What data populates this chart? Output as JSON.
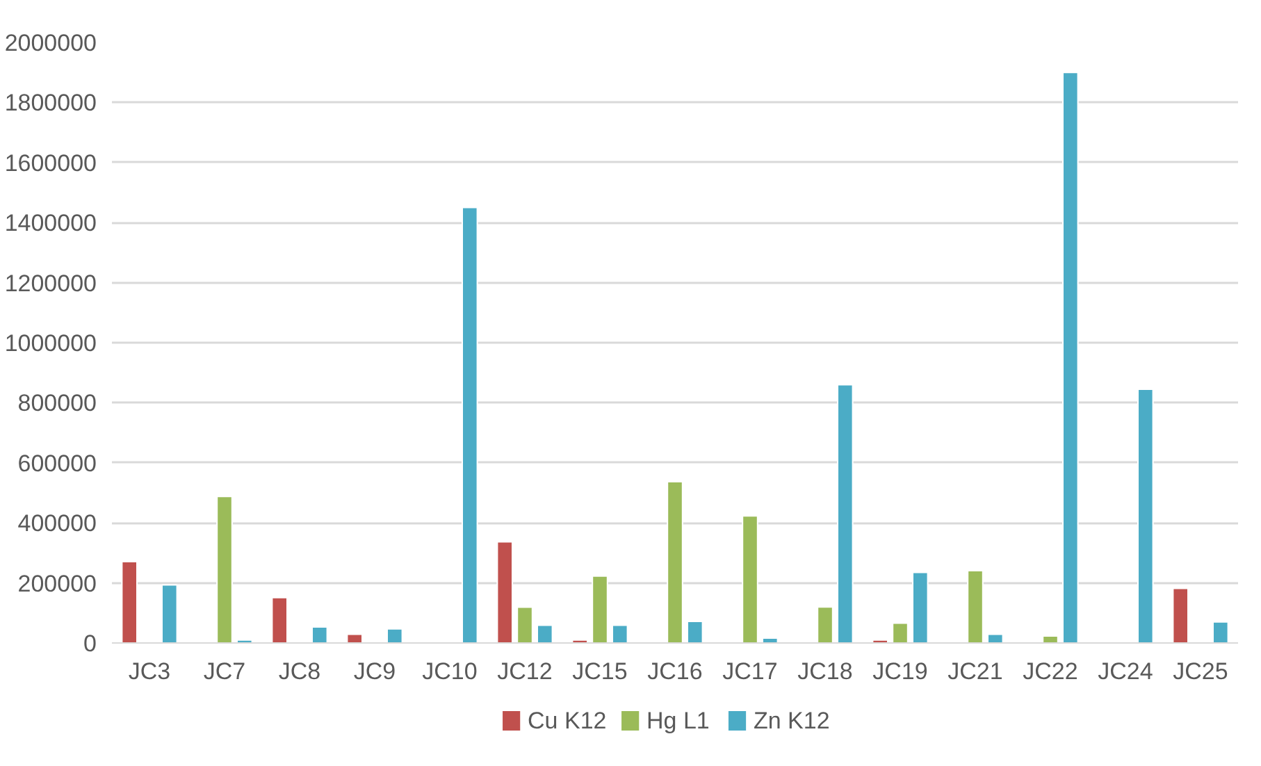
{
  "chart_data": {
    "type": "bar",
    "categories": [
      "JC3",
      "JC7",
      "JC8",
      "JC9",
      "JC10",
      "JC12",
      "JC15",
      "JC16",
      "JC17",
      "JC18",
      "JC19",
      "JC21",
      "JC22",
      "JC24",
      "JC25"
    ],
    "series": [
      {
        "name": "Cu K12",
        "color": "#c0504d",
        "values": [
          271000,
          null,
          151000,
          29000,
          null,
          337000,
          10000,
          null,
          null,
          null,
          10000,
          null,
          null,
          null,
          182000
        ]
      },
      {
        "name": "Hg L1",
        "color": "#9bbb59",
        "values": [
          null,
          488000,
          null,
          null,
          null,
          119000,
          223000,
          537000,
          423000,
          120000,
          66000,
          241000,
          23000,
          null,
          null
        ]
      },
      {
        "name": "Zn K12",
        "color": "#4bacc6",
        "values": [
          193000,
          10000,
          53000,
          47000,
          1450000,
          59000,
          59000,
          72000,
          16000,
          860000,
          235000,
          29000,
          1900000,
          845000,
          70000
        ]
      }
    ],
    "ylim": [
      0,
      2000000
    ],
    "yticks": [
      0,
      200000,
      400000,
      600000,
      800000,
      1000000,
      1200000,
      1400000,
      1600000,
      1800000,
      2000000
    ],
    "grid": "y",
    "legend": "bottom"
  }
}
